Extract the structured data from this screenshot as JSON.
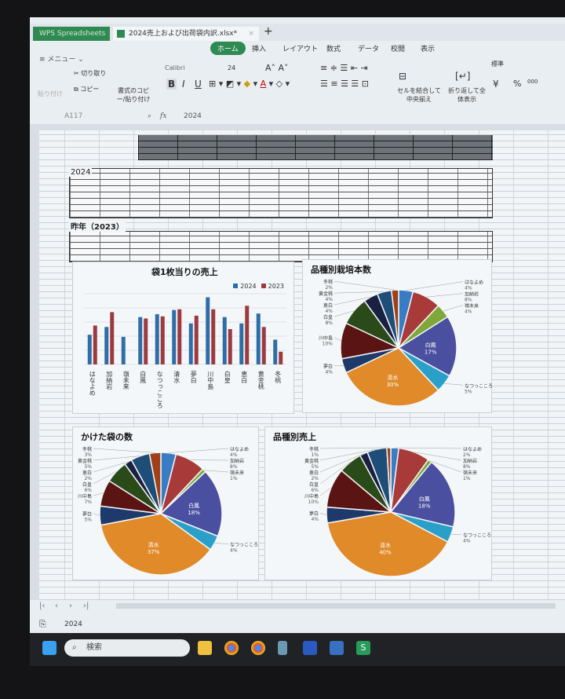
{
  "window": {
    "app_tab": "WPS Spreadsheets",
    "file_tab": "2024売上および出荷袋内訳.xlsx*",
    "new_tab": "+"
  },
  "menu": {
    "quick": "≡ メニュー ⌄",
    "items": [
      "ホーム",
      "挿入",
      "レイアウト",
      "数式",
      "データ",
      "校閲",
      "表示"
    ]
  },
  "ribbon": {
    "paste": "貼り付け",
    "cut": "切り取り",
    "copy": "コピー",
    "format_painter": "書式のコピー/貼り付け",
    "font": "Calibri",
    "size": "24",
    "bold": "B",
    "italic": "I",
    "underline": "U",
    "merge": "セルを結合して中央揃え",
    "wrap": "折り返して全体表示",
    "number_format": "標準",
    "yen": "¥",
    "percent": "%",
    "thousands": "000"
  },
  "formula": {
    "cell_ref": "A117",
    "fx": "fx",
    "value": "2024"
  },
  "sheet": {
    "section_2024": "2024",
    "section_2023": "昨年（2023）"
  },
  "sheet_tab": "2024",
  "taskbar": {
    "search": "検索"
  },
  "chart_data": [
    {
      "type": "bar",
      "title": "袋1枚当りの売上",
      "categories": [
        "はなよめ",
        "加納岩",
        "嶺未来",
        "白鳳",
        "なつっこころ",
        "清水",
        "夢白",
        "川中島",
        "白皇",
        "恵白",
        "黄金桃",
        "冬桃"
      ],
      "series": [
        {
          "name": "2024",
          "color": "#2e6da8",
          "values": [
            42,
            53,
            39,
            67,
            71,
            77,
            58,
            95,
            67,
            58,
            72,
            35
          ]
        },
        {
          "name": "2023",
          "color": "#9c3a40",
          "values": [
            55,
            74,
            0,
            65,
            68,
            78,
            69,
            78,
            50,
            83,
            53,
            18
          ]
        }
      ],
      "ylim": [
        0,
        100
      ],
      "legend": "top-right",
      "grid": true
    },
    {
      "type": "pie",
      "title": "品種別栽培本数",
      "categories": [
        "はなよめ",
        "加納岩",
        "嶺未来",
        "白鳳",
        "なつっこころ",
        "清水",
        "夢白",
        "川中島",
        "白皇",
        "恵白",
        "黄金桃",
        "冬桃"
      ],
      "values": [
        4,
        8,
        4,
        17,
        5,
        30,
        4,
        10,
        8,
        4,
        4,
        2
      ]
    },
    {
      "type": "pie",
      "title": "かけた袋の数",
      "categories": [
        "はなよめ",
        "加納岩",
        "嶺未来",
        "白鳳",
        "なつっこころ",
        "清水",
        "夢白",
        "川中島",
        "白皇",
        "恵白",
        "黄金桃",
        "冬桃"
      ],
      "values": [
        4,
        8,
        1,
        18,
        4,
        37,
        5,
        7,
        6,
        2,
        5,
        3
      ]
    },
    {
      "type": "pie",
      "title": "品種別売上",
      "categories": [
        "はなよめ",
        "加納岩",
        "嶺未来",
        "白鳳",
        "なつっこころ",
        "清水",
        "夢白",
        "川中島",
        "白皇",
        "恵白",
        "黄金桃",
        "冬桃"
      ],
      "values": [
        2,
        8,
        1,
        18,
        4,
        40,
        4,
        10,
        6,
        2,
        5,
        1
      ]
    }
  ],
  "pie_colors": [
    "#3a7cc4",
    "#a83a3a",
    "#7fa83a",
    "#4a4fa0",
    "#2aa0c8",
    "#e08a2a",
    "#1e3a6a",
    "#5a1414",
    "#2a4a1a",
    "#1a2040",
    "#1e4e78",
    "#a0401a"
  ]
}
